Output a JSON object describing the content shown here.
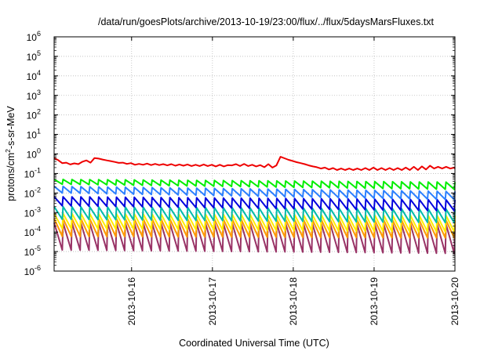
{
  "chart_data": {
    "type": "line",
    "title": "/data/run/goesPlots/archive/2013-10-19/23:00/flux/../flux/5daysMarsFluxes.txt",
    "xlabel": "Coordinated Universal Time (UTC)",
    "ylabel_parts": [
      "protons/cm",
      "2",
      "-s-sr-MeV"
    ],
    "y_scale": "log",
    "ylim_exponents": [
      -6,
      6
    ],
    "y_tick_exponents": [
      -6,
      -5,
      -4,
      -3,
      -2,
      -1,
      0,
      1,
      2,
      3,
      4,
      5,
      6
    ],
    "y_tick_base": "10",
    "x_range": [
      "2013-10-15T01:00",
      "2013-10-20T00:00"
    ],
    "x_ticks": [
      "2013-10-16",
      "2013-10-17",
      "2013-10-18",
      "2013-10-19",
      "2013-10-20"
    ],
    "grid": true,
    "series": [
      {
        "color": "#ee0000",
        "x": [
          "2013-10-15T01:00",
          "2013-10-15T02:12",
          "2013-10-15T03:24",
          "2013-10-15T04:36",
          "2013-10-15T05:48",
          "2013-10-15T07:00",
          "2013-10-15T08:12",
          "2013-10-15T09:24",
          "2013-10-15T10:36",
          "2013-10-15T11:48",
          "2013-10-15T13:00",
          "2013-10-15T14:12",
          "2013-10-15T15:24",
          "2013-10-15T16:36",
          "2013-10-15T17:48",
          "2013-10-15T19:00",
          "2013-10-15T20:12",
          "2013-10-15T21:24",
          "2013-10-15T22:36",
          "2013-10-15T23:48",
          "2013-10-16T01:00",
          "2013-10-16T02:12",
          "2013-10-16T03:24",
          "2013-10-16T04:36",
          "2013-10-16T05:48",
          "2013-10-16T07:00",
          "2013-10-16T08:12",
          "2013-10-16T09:24",
          "2013-10-16T10:36",
          "2013-10-16T11:48",
          "2013-10-16T13:00",
          "2013-10-16T14:12",
          "2013-10-16T15:24",
          "2013-10-16T16:36",
          "2013-10-16T17:48",
          "2013-10-16T19:00",
          "2013-10-16T20:12",
          "2013-10-16T21:24",
          "2013-10-16T22:36",
          "2013-10-16T23:48",
          "2013-10-17T01:00",
          "2013-10-17T02:12",
          "2013-10-17T03:24",
          "2013-10-17T04:36",
          "2013-10-17T05:48",
          "2013-10-17T07:00",
          "2013-10-17T08:12",
          "2013-10-17T09:24",
          "2013-10-17T10:36",
          "2013-10-17T11:48",
          "2013-10-17T13:00",
          "2013-10-17T14:12",
          "2013-10-17T15:24",
          "2013-10-17T16:36",
          "2013-10-17T17:48",
          "2013-10-17T19:00",
          "2013-10-17T20:12",
          "2013-10-17T21:24",
          "2013-10-17T22:36",
          "2013-10-17T23:48",
          "2013-10-18T01:00",
          "2013-10-18T02:12",
          "2013-10-18T03:24",
          "2013-10-18T04:36",
          "2013-10-18T05:48",
          "2013-10-18T07:00",
          "2013-10-18T08:12",
          "2013-10-18T09:24",
          "2013-10-18T10:36",
          "2013-10-18T11:48",
          "2013-10-18T13:00",
          "2013-10-18T14:12",
          "2013-10-18T15:24",
          "2013-10-18T16:36",
          "2013-10-18T17:48",
          "2013-10-18T19:00",
          "2013-10-18T20:12",
          "2013-10-18T21:24",
          "2013-10-18T22:36",
          "2013-10-18T23:48",
          "2013-10-19T01:00",
          "2013-10-19T02:12",
          "2013-10-19T03:24",
          "2013-10-19T04:36",
          "2013-10-19T05:48",
          "2013-10-19T07:00",
          "2013-10-19T08:12",
          "2013-10-19T09:24",
          "2013-10-19T10:36",
          "2013-10-19T11:48",
          "2013-10-19T13:00",
          "2013-10-19T14:12",
          "2013-10-19T15:24",
          "2013-10-19T16:36",
          "2013-10-19T17:48",
          "2013-10-19T19:00",
          "2013-10-19T20:12",
          "2013-10-19T21:24",
          "2013-10-19T22:36",
          "2013-10-19T23:48",
          "2013-10-20T00:00"
        ],
        "y": [
          0.62,
          0.48,
          0.34,
          0.36,
          0.29,
          0.33,
          0.3,
          0.4,
          0.47,
          0.36,
          0.62,
          0.58,
          0.52,
          0.47,
          0.43,
          0.39,
          0.35,
          0.36,
          0.31,
          0.34,
          0.28,
          0.31,
          0.28,
          0.32,
          0.27,
          0.31,
          0.27,
          0.3,
          0.26,
          0.3,
          0.25,
          0.29,
          0.25,
          0.29,
          0.24,
          0.28,
          0.24,
          0.29,
          0.24,
          0.28,
          0.23,
          0.28,
          0.23,
          0.27,
          0.26,
          0.3,
          0.24,
          0.31,
          0.24,
          0.28,
          0.23,
          0.27,
          0.21,
          0.3,
          0.2,
          0.26,
          0.72,
          0.6,
          0.5,
          0.44,
          0.38,
          0.34,
          0.3,
          0.26,
          0.23,
          0.21,
          0.18,
          0.2,
          0.16,
          0.19,
          0.15,
          0.18,
          0.15,
          0.18,
          0.15,
          0.18,
          0.15,
          0.19,
          0.15,
          0.2,
          0.15,
          0.19,
          0.15,
          0.19,
          0.15,
          0.19,
          0.15,
          0.2,
          0.15,
          0.22,
          0.15,
          0.23,
          0.16,
          0.25,
          0.18,
          0.22,
          0.18,
          0.22,
          0.18,
          0.2,
          0.18
        ]
      }
    ],
    "sawtooth_series": [
      {
        "color": "#00ee00",
        "peaks": [
          0.05,
          0.036
        ],
        "troughs": [
          0.028,
          0.015
        ]
      },
      {
        "color": "#2b7fff",
        "peaks": [
          0.022,
          0.012
        ],
        "troughs": [
          0.01,
          0.0045
        ]
      },
      {
        "color": "#0000dd",
        "peaks": [
          0.0065,
          0.0045
        ],
        "troughs": [
          0.0022,
          0.0012
        ]
      },
      {
        "color": "#00bbaa",
        "peaks": [
          0.002,
          0.0015
        ],
        "troughs": [
          0.00045,
          0.0003
        ]
      },
      {
        "color": "#ffee00",
        "peaks": [
          0.0009,
          0.0007
        ],
        "troughs": [
          0.00015,
          0.0001
        ]
      },
      {
        "color": "#ff9900",
        "peaks": [
          0.0005,
          0.0004
        ],
        "troughs": [
          6e-05,
          5e-05
        ]
      },
      {
        "color": "#993366",
        "peaks": [
          0.0003,
          0.00025
        ],
        "troughs": [
          1.2e-05,
          8e-06
        ]
      }
    ],
    "sawtooth_cycles": 45
  }
}
